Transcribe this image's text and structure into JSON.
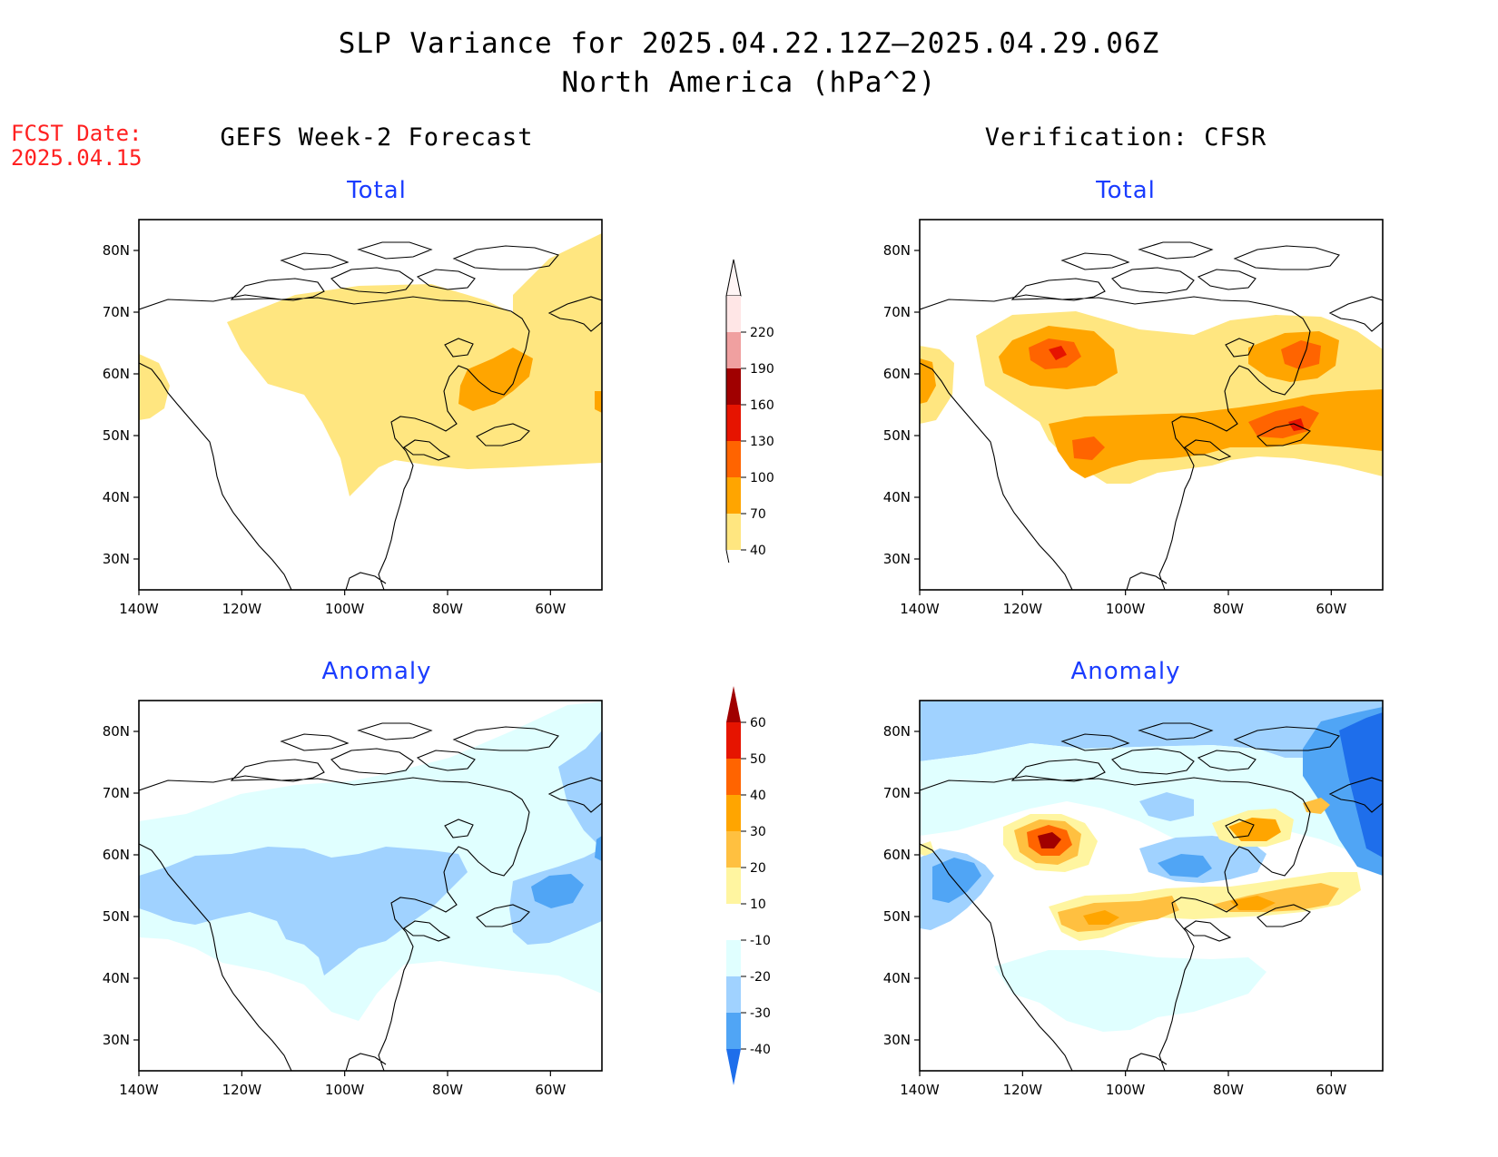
{
  "header": {
    "title_line1": "SLP Variance for 2025.04.22.12Z–2025.04.29.06Z",
    "title_line2": "North America (hPa^2)",
    "fcst_label": "FCST Date:",
    "fcst_date": "2025.04.15"
  },
  "columns": {
    "left_title": "GEFS Week-2 Forecast",
    "right_title": "Verification: CFSR"
  },
  "panels": [
    {
      "id": "gefs-total",
      "subtitle": "Total"
    },
    {
      "id": "cfsr-total",
      "subtitle": "Total"
    },
    {
      "id": "gefs-anomaly",
      "subtitle": "Anomaly"
    },
    {
      "id": "cfsr-anomaly",
      "subtitle": "Anomaly"
    }
  ],
  "axes": {
    "lon_labels": [
      "140W",
      "120W",
      "100W",
      "80W",
      "60W"
    ],
    "lat_labels": [
      "80N",
      "70N",
      "60N",
      "50N",
      "40N",
      "30N"
    ]
  },
  "colorbars": {
    "total": {
      "levels": [
        "40",
        "70",
        "100",
        "130",
        "160",
        "190",
        "220"
      ],
      "colors": [
        "#ffe680",
        "#ffa500",
        "#ff6400",
        "#e61400",
        "#a00000",
        "#f0a0a0",
        "#ffe6e6"
      ]
    },
    "anomaly": {
      "levels": [
        "60",
        "50",
        "40",
        "30",
        "20",
        "10",
        "-10",
        "-20",
        "-30",
        "-40"
      ],
      "colors": [
        "#a00000",
        "#e61400",
        "#ff6400",
        "#ffa500",
        "#ffc040",
        "#fff5a0",
        "#ffffff",
        "#e0ffff",
        "#a0d2ff",
        "#50a5f5",
        "#1e6eeb"
      ]
    }
  },
  "shade_colors": {
    "c40": "#ffe680",
    "c70": "#ffa500",
    "c100": "#ff6400",
    "c130": "#e61400",
    "a10": "#fff5a0",
    "a20": "#ffc040",
    "a30": "#ffa500",
    "a40": "#ff6400",
    "a50": "#e61400",
    "a60": "#a00000",
    "m10": "#e0ffff",
    "m20": "#a0d2ff",
    "m30": "#50a5f5",
    "m40": "#1e6eeb"
  }
}
